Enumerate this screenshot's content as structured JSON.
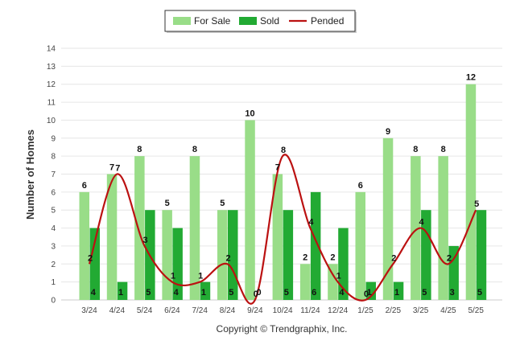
{
  "chart_data": {
    "type": "bar",
    "categories": [
      "3/24",
      "4/24",
      "5/24",
      "6/24",
      "7/24",
      "8/24",
      "9/24",
      "10/24",
      "11/24",
      "12/24",
      "1/25",
      "2/25",
      "3/25",
      "4/25",
      "5/25"
    ],
    "series": [
      {
        "name": "For Sale",
        "type": "bar",
        "color": "#99dd88",
        "values": [
          6,
          7,
          8,
          5,
          8,
          5,
          10,
          7,
          2,
          2,
          6,
          9,
          8,
          8,
          12
        ]
      },
      {
        "name": "Sold",
        "type": "bar",
        "color": "#22aa33",
        "values": [
          4,
          1,
          5,
          4,
          1,
          5,
          0,
          5,
          6,
          4,
          1,
          1,
          5,
          3,
          5
        ]
      },
      {
        "name": "Pended",
        "type": "line",
        "color": "#bb1111",
        "values": [
          2,
          7,
          3,
          1,
          1,
          2,
          0,
          8,
          4,
          1,
          0,
          2,
          4,
          2,
          5
        ]
      }
    ],
    "ylabel": "Number of Homes",
    "xlabel": "",
    "ylim": [
      0,
      14
    ],
    "yticks": [
      0,
      1,
      2,
      3,
      4,
      5,
      6,
      7,
      8,
      9,
      10,
      11,
      12,
      13,
      14
    ],
    "grid": true,
    "legend_position": "top-center"
  },
  "footer": {
    "credit": "Copyright © Trendgraphix, Inc."
  }
}
